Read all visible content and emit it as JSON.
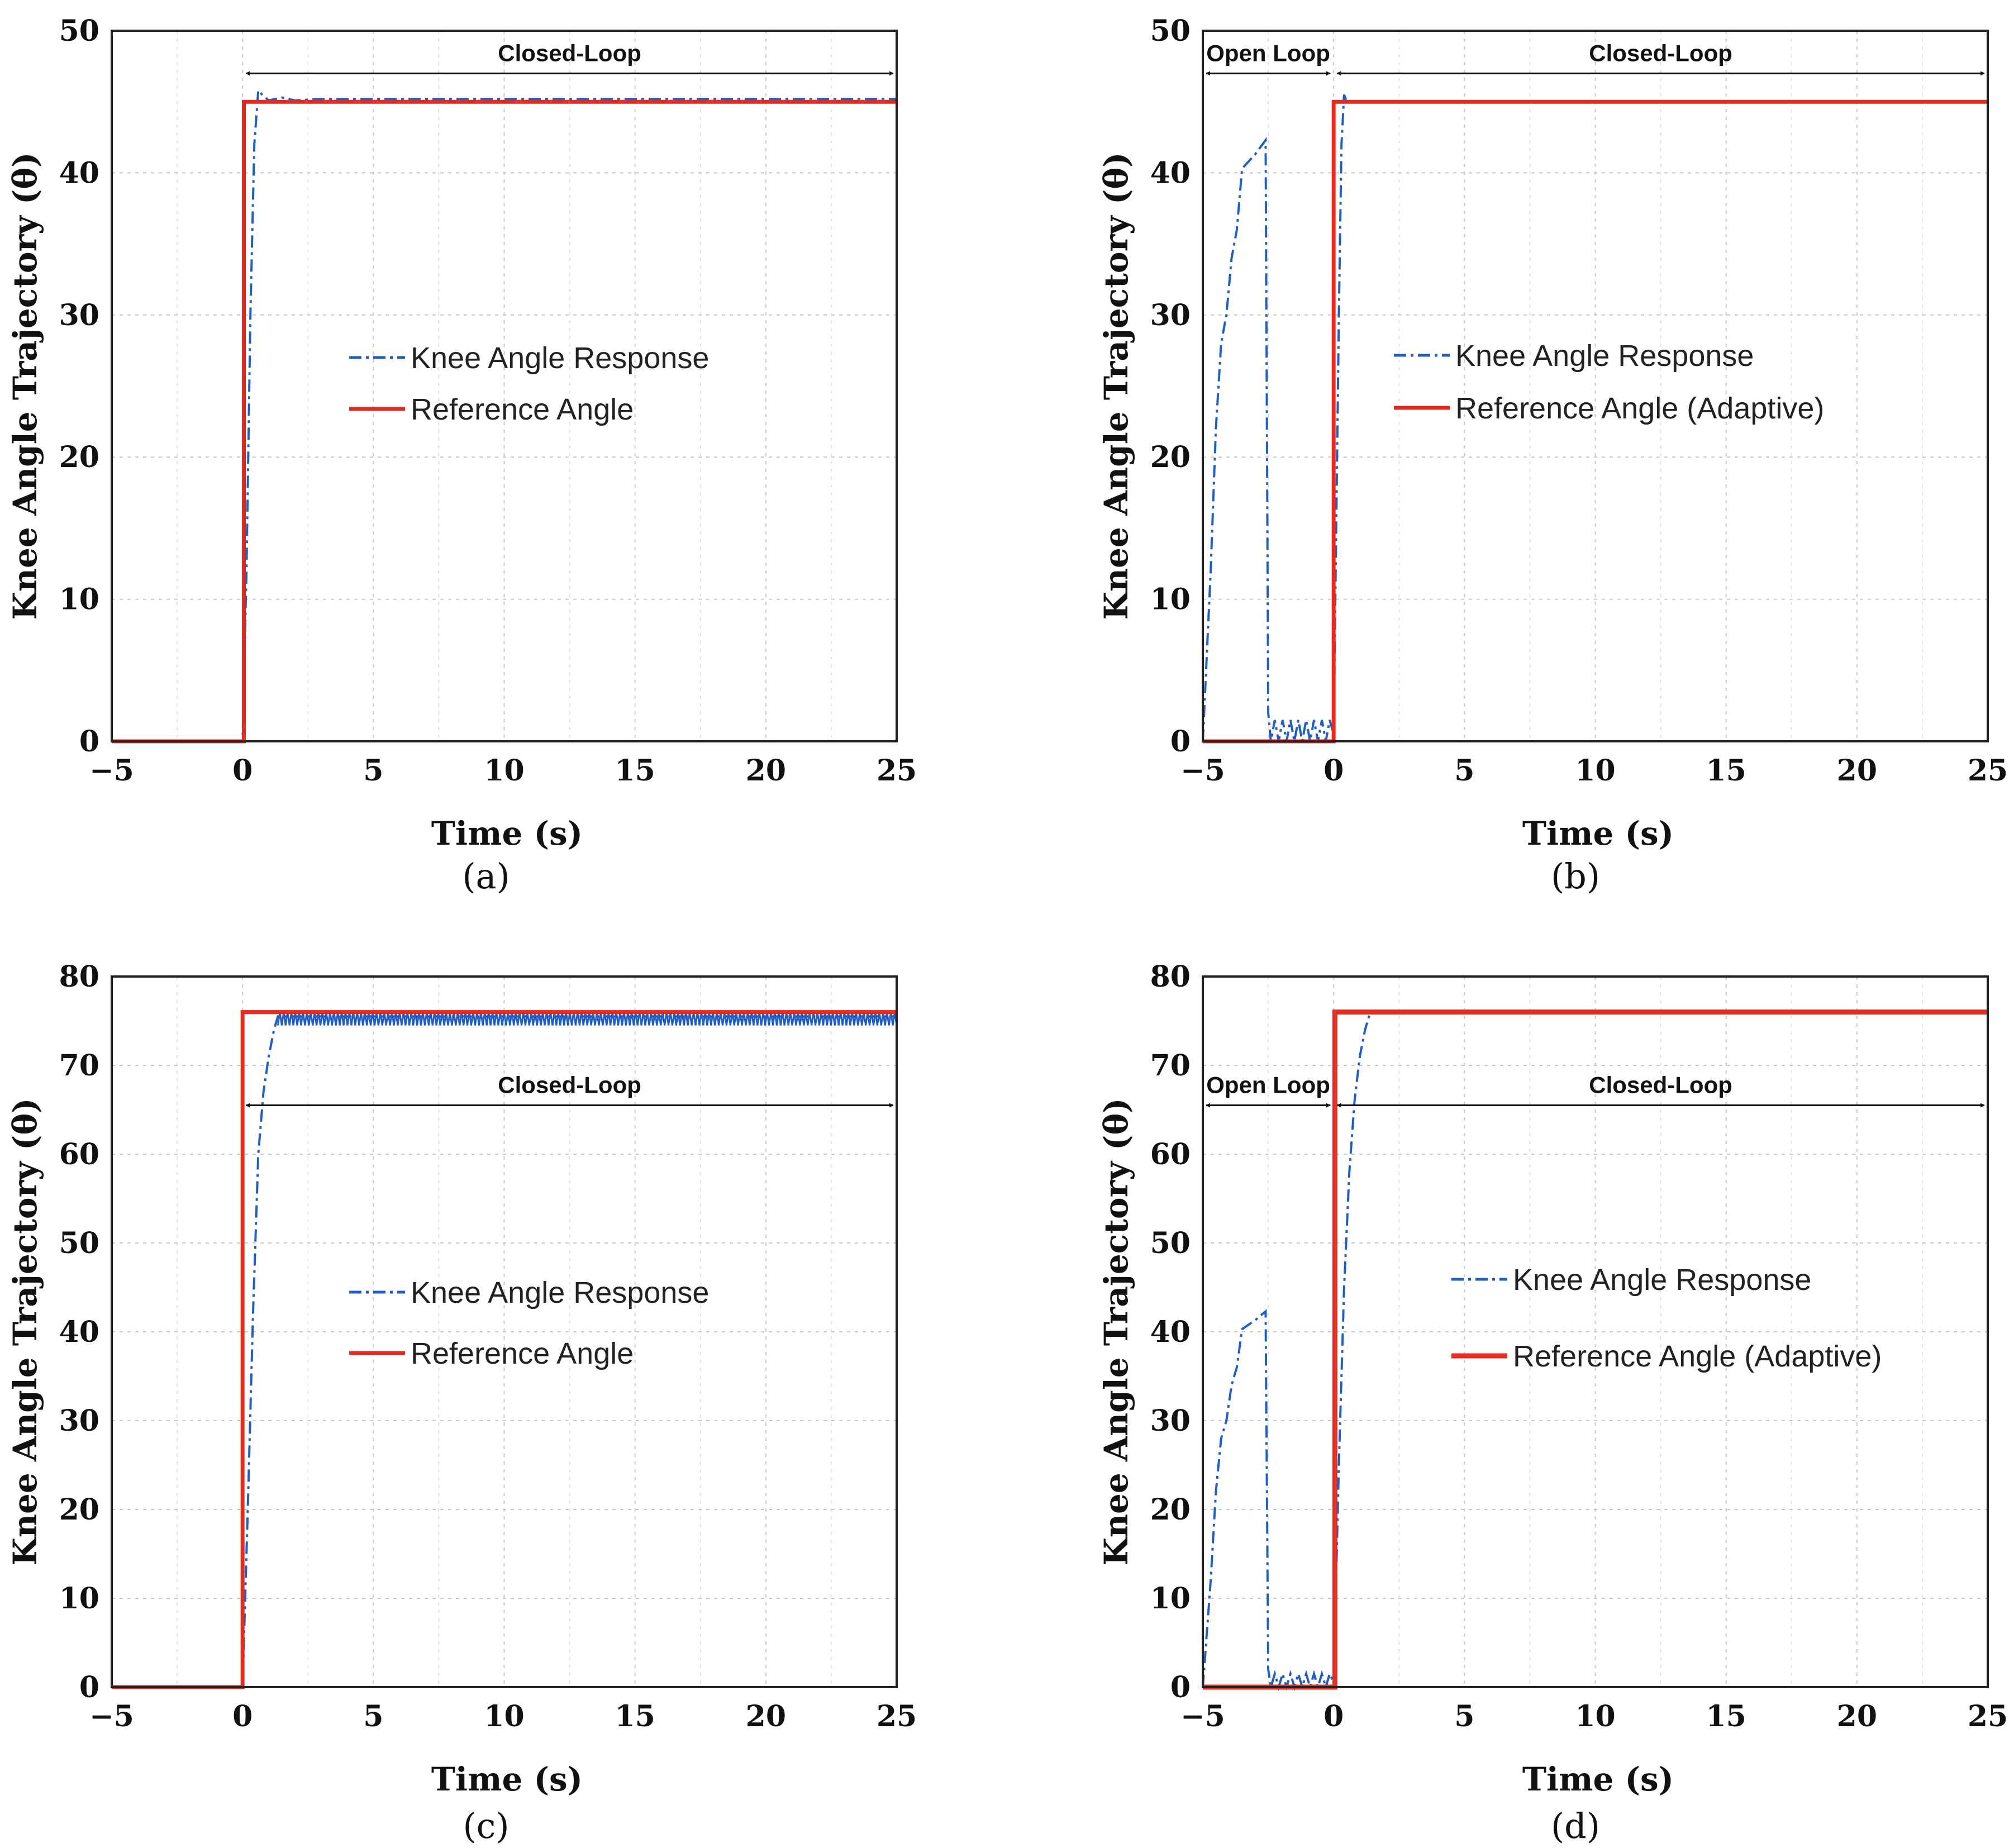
{
  "figure": {
    "colors": {
      "response": "#1f5fc4",
      "reference": "#e8291c",
      "grid": "#c8c8c8",
      "axis": "#222222"
    }
  },
  "chart_data": [
    {
      "id": "a",
      "type": "line",
      "caption": "(a)",
      "xlabel": "Time (s)",
      "ylabel": "Knee Angle Trajectory (θ)",
      "xlim": [
        -5,
        25
      ],
      "ylim": [
        0,
        50
      ],
      "xticks": [
        -5,
        0,
        5,
        10,
        15,
        20,
        25
      ],
      "xtick_labels": [
        "−5",
        "0",
        "5",
        "10",
        "15",
        "20",
        "25"
      ],
      "yticks": [
        0,
        10,
        20,
        30,
        40,
        50
      ],
      "ytick_labels": [
        "0",
        "10",
        "20",
        "30",
        "40",
        "50"
      ],
      "series": [
        {
          "name": "Knee Angle Response",
          "style": "dashdot",
          "color": "#1f5fc4",
          "width": 4,
          "x": [
            -5,
            0,
            0.15,
            0.3,
            0.45,
            0.6,
            0.75,
            1.0,
            1.5,
            2.0,
            3.0,
            5,
            10,
            15,
            20,
            25
          ],
          "y": [
            0,
            0,
            12,
            30,
            42,
            45.8,
            45.5,
            45.1,
            45.3,
            45.1,
            45.2,
            45.2,
            45.2,
            45.2,
            45.2,
            45.2
          ]
        },
        {
          "name": "Reference Angle",
          "style": "solid",
          "color": "#e8291c",
          "width": 7,
          "x": [
            -5,
            0.05,
            0.05,
            25
          ],
          "y": [
            0,
            0,
            45,
            45
          ]
        }
      ],
      "annotations": [
        {
          "label": "Closed-Loop",
          "x_start": 0,
          "x_end": 25,
          "y": 47
        }
      ]
    },
    {
      "id": "b",
      "type": "line",
      "caption": "(b)",
      "xlabel": "Time (s)",
      "ylabel": "Knee Angle Trajectory (θ)",
      "xlim": [
        -5,
        25
      ],
      "ylim": [
        0,
        50
      ],
      "xticks": [
        -5,
        0,
        5,
        10,
        15,
        20,
        25
      ],
      "xtick_labels": [
        "−5",
        "0",
        "5",
        "10",
        "15",
        "20",
        "25"
      ],
      "yticks": [
        0,
        10,
        20,
        30,
        40,
        50
      ],
      "ytick_labels": [
        "0",
        "10",
        "20",
        "30",
        "40",
        "50"
      ],
      "series": [
        {
          "name": "Knee Angle Response",
          "style": "dashdot",
          "color": "#1f5fc4",
          "width": 4,
          "x": [
            -5,
            -4.7,
            -4.5,
            -4.3,
            -4.1,
            -3.9,
            -3.7,
            -3.5,
            -3.0,
            -2.6,
            -2.5,
            -2.4,
            -2.25,
            -2.1,
            -1.95,
            -1.8,
            -1.65,
            -1.5,
            -1.35,
            -1.2,
            -1.05,
            -0.9,
            -0.75,
            -0.6,
            -0.45,
            -0.3,
            -0.15,
            0,
            0.1,
            0.2,
            0.3,
            0.4,
            0.5,
            5,
            10,
            15,
            20,
            25
          ],
          "y": [
            0,
            12,
            22,
            28,
            30,
            34,
            36,
            40.3,
            41.3,
            42.3,
            2,
            0,
            1.5,
            0,
            1.5,
            0,
            1.5,
            0,
            1.5,
            0,
            1.5,
            0,
            1.5,
            0,
            1.5,
            0,
            1.5,
            0.5,
            15,
            30,
            42,
            45.5,
            45,
            45,
            45,
            45,
            45,
            45
          ]
        },
        {
          "name": "Reference Angle (Adaptive)",
          "style": "solid",
          "color": "#e8291c",
          "width": 7,
          "x": [
            -5,
            0,
            0,
            25
          ],
          "y": [
            0,
            0,
            45,
            45
          ]
        }
      ],
      "annotations": [
        {
          "label": "Open Loop",
          "x_start": -5,
          "x_end": 0,
          "y": 47
        },
        {
          "label": "Closed-Loop",
          "x_start": 0,
          "x_end": 25,
          "y": 47
        }
      ]
    },
    {
      "id": "c",
      "type": "line",
      "caption": "(c)",
      "xlabel": "Time (s)",
      "ylabel": "Knee Angle Trajectory (θ)",
      "xlim": [
        -5,
        25
      ],
      "ylim": [
        0,
        80
      ],
      "xticks": [
        -5,
        0,
        5,
        10,
        15,
        20,
        25
      ],
      "xtick_labels": [
        "−5",
        "0",
        "5",
        "10",
        "15",
        "20",
        "25"
      ],
      "yticks": [
        0,
        10,
        20,
        30,
        40,
        50,
        60,
        70,
        80
      ],
      "ytick_labels": [
        "0",
        "10",
        "20",
        "30",
        "40",
        "50",
        "60",
        "70",
        "80"
      ],
      "series": [
        {
          "name": "Knee Angle Response",
          "style": "dashdot",
          "color": "#1f5fc4",
          "width": 4,
          "x": [
            -5,
            0,
            0.2,
            0.4,
            0.6,
            0.8,
            1.0,
            1.2,
            1.35,
            25
          ],
          "y": [
            0,
            0,
            20,
            42,
            60,
            67,
            71,
            74,
            75.5,
            75.5
          ],
          "band": [
            74.5,
            76
          ]
        },
        {
          "name": "Reference Angle",
          "style": "solid",
          "color": "#e8291c",
          "width": 7,
          "x": [
            -5,
            0,
            0,
            25
          ],
          "y": [
            0,
            0,
            76,
            76
          ]
        }
      ],
      "annotations": [
        {
          "label": "Closed-Loop",
          "x_start": 0,
          "x_end": 25,
          "y": 65.5
        }
      ]
    },
    {
      "id": "d",
      "type": "line",
      "caption": "(d)",
      "xlabel": "Time (s)",
      "ylabel": "Knee Angle Trajectory (θ)",
      "xlim": [
        -5,
        25
      ],
      "ylim": [
        0,
        80
      ],
      "xticks": [
        -5,
        0,
        5,
        10,
        15,
        20,
        25
      ],
      "xtick_labels": [
        "−5",
        "0",
        "5",
        "10",
        "15",
        "20",
        "25"
      ],
      "yticks": [
        0,
        10,
        20,
        30,
        40,
        50,
        60,
        70,
        80
      ],
      "ytick_labels": [
        "0",
        "10",
        "20",
        "30",
        "40",
        "50",
        "60",
        "70",
        "80"
      ],
      "series": [
        {
          "name": "Knee Angle Response",
          "style": "dashdot",
          "color": "#1f5fc4",
          "width": 4,
          "x": [
            -5,
            -4.7,
            -4.5,
            -4.3,
            -4.1,
            -3.9,
            -3.7,
            -3.5,
            -3.0,
            -2.6,
            -2.5,
            -2.4,
            -2.25,
            -2.1,
            -1.95,
            -1.8,
            -1.65,
            -1.5,
            -1.35,
            -1.2,
            -1.05,
            -0.9,
            -0.75,
            -0.6,
            -0.45,
            -0.3,
            -0.15,
            0,
            0.2,
            0.4,
            0.6,
            0.8,
            1.0,
            1.2,
            1.4,
            25
          ],
          "y": [
            0,
            12,
            22,
            28,
            30,
            34,
            36,
            40.3,
            41.3,
            42.3,
            2,
            0,
            1.5,
            0,
            1.5,
            0,
            1.5,
            0,
            1.5,
            0,
            1.5,
            0,
            1.5,
            0,
            1.5,
            0,
            1.5,
            0.5,
            25,
            45,
            58,
            66,
            71,
            74,
            76,
            76
          ]
        },
        {
          "name": "Reference Angle (Adaptive)",
          "style": "solid",
          "color": "#e8291c",
          "width": 9,
          "x": [
            -5,
            0.05,
            0.05,
            25
          ],
          "y": [
            0,
            0,
            76,
            76
          ]
        }
      ],
      "annotations": [
        {
          "label": "Open Loop",
          "x_start": -5,
          "x_end": 0,
          "y": 65.5
        },
        {
          "label": "Closed-Loop",
          "x_start": 0,
          "x_end": 25,
          "y": 65.5
        }
      ]
    }
  ]
}
